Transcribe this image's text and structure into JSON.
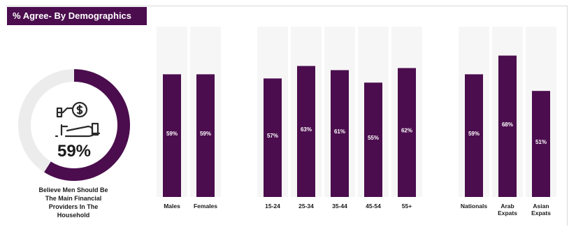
{
  "header": {
    "title": "% Agree- By Demographics"
  },
  "summary": {
    "value": 59,
    "percent_label": "59%",
    "caption_lines": [
      "Believe Men Should Be",
      "The Main Financial",
      "Providers In The",
      "Household"
    ],
    "icon": "money-hand-icon"
  },
  "colors": {
    "primary": "#4b0d4e",
    "track": "#ececec",
    "column_bg": "#f6f6f6",
    "bar_label": "#ffffff"
  },
  "chart_data": {
    "type": "bar",
    "title": "% Agree- By Demographics",
    "xlabel": "",
    "ylabel": "",
    "ylim": [
      0,
      100
    ],
    "grid": false,
    "groups": [
      {
        "categories": [
          [
            "Males"
          ],
          [
            "Females"
          ]
        ],
        "values": [
          59,
          59
        ]
      },
      {
        "categories": [
          [
            "15-24"
          ],
          [
            "25-34"
          ],
          [
            "35-44"
          ],
          [
            "45-54"
          ],
          [
            "55+"
          ]
        ],
        "values": [
          57,
          63,
          61,
          55,
          62
        ]
      },
      {
        "categories": [
          [
            "Nationals"
          ],
          [
            "Arab",
            "Expats"
          ],
          [
            "Asian",
            "Expats"
          ]
        ],
        "values": [
          59,
          68,
          51
        ]
      }
    ]
  }
}
